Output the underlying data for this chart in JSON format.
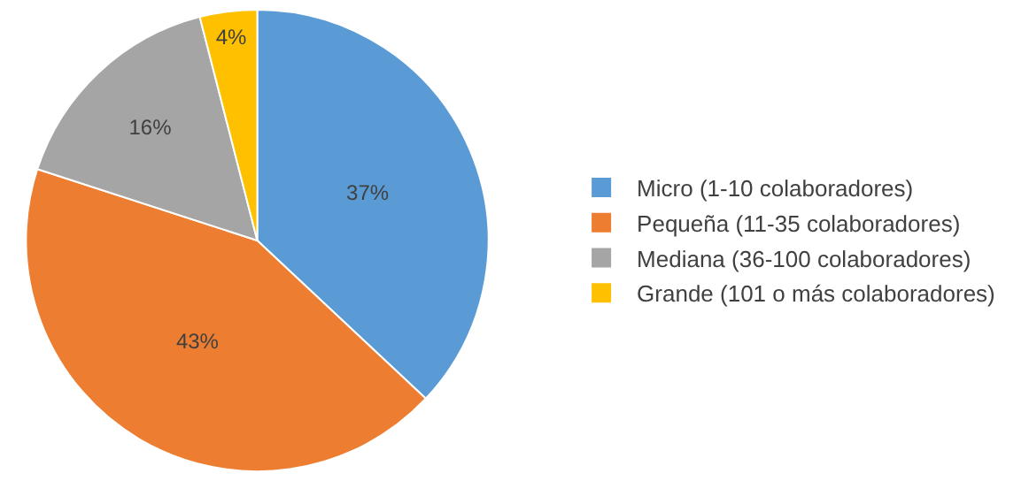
{
  "chart_data": {
    "type": "pie",
    "categories": [
      "Micro (1-10 colaboradores)",
      "Pequeña (11-35 colaboradores)",
      "Mediana (36-100 colaboradores)",
      "Grande (101 o más colaboradores)"
    ],
    "values": [
      37,
      43,
      16,
      4
    ],
    "value_labels": [
      "37%",
      "43%",
      "16%",
      "4%"
    ],
    "colors": [
      "#5b9bd5",
      "#ed7d31",
      "#a5a5a5",
      "#ffc000"
    ],
    "legend": "right"
  }
}
